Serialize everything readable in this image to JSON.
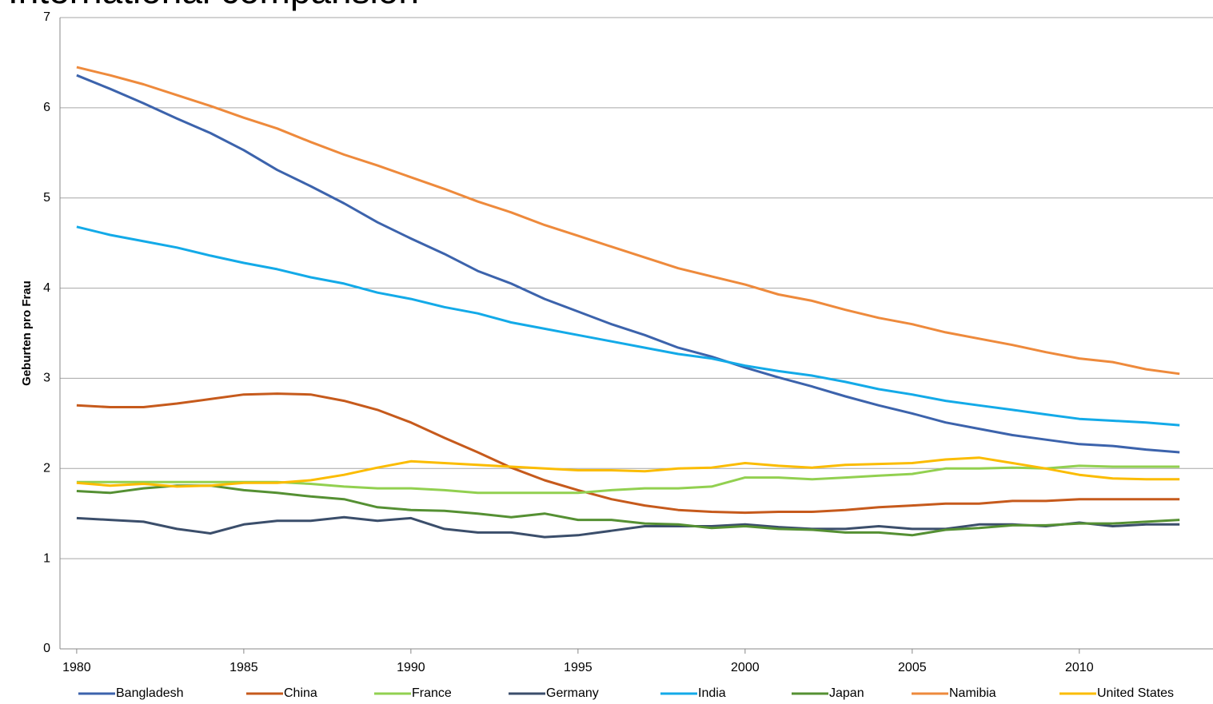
{
  "chart_data": {
    "type": "line",
    "title": "International comparision",
    "y_label": "Geburten pro Frau",
    "x": [
      1980,
      1981,
      1982,
      1983,
      1984,
      1985,
      1986,
      1987,
      1988,
      1989,
      1990,
      1991,
      1992,
      1993,
      1994,
      1995,
      1996,
      1997,
      1998,
      1999,
      2000,
      2001,
      2002,
      2003,
      2004,
      2005,
      2006,
      2007,
      2008,
      2009,
      2010,
      2011,
      2012,
      2013
    ],
    "xlim": [
      1979.5,
      2014
    ],
    "xticks": [
      1980,
      1985,
      1990,
      1995,
      2000,
      2005,
      2010
    ],
    "ylim": [
      0,
      7
    ],
    "yticks": [
      0,
      1,
      2,
      3,
      4,
      5,
      6,
      7
    ],
    "grid": true,
    "legend": "bottom",
    "series": [
      {
        "name": "Bangladesh",
        "color": "#3c63ac",
        "values": [
          6.36,
          6.21,
          6.05,
          5.88,
          5.72,
          5.53,
          5.31,
          5.13,
          4.94,
          4.73,
          4.55,
          4.38,
          4.19,
          4.05,
          3.88,
          3.74,
          3.6,
          3.48,
          3.34,
          3.24,
          3.12,
          3.01,
          2.91,
          2.8,
          2.7,
          2.61,
          2.51,
          2.44,
          2.37,
          2.32,
          2.27,
          2.25,
          2.21,
          2.18
        ]
      },
      {
        "name": "China",
        "color": "#c65a1c",
        "values": [
          2.7,
          2.68,
          2.68,
          2.72,
          2.77,
          2.82,
          2.83,
          2.82,
          2.75,
          2.65,
          2.51,
          2.34,
          2.18,
          2.01,
          1.87,
          1.76,
          1.66,
          1.59,
          1.54,
          1.52,
          1.51,
          1.52,
          1.52,
          1.54,
          1.57,
          1.59,
          1.61,
          1.61,
          1.64,
          1.64,
          1.66,
          1.66,
          1.66,
          1.66
        ]
      },
      {
        "name": "France",
        "color": "#92d050",
        "values": [
          1.85,
          1.85,
          1.85,
          1.85,
          1.85,
          1.85,
          1.85,
          1.83,
          1.8,
          1.78,
          1.78,
          1.76,
          1.73,
          1.73,
          1.73,
          1.73,
          1.76,
          1.78,
          1.78,
          1.8,
          1.9,
          1.9,
          1.88,
          1.9,
          1.92,
          1.94,
          2.0,
          2.0,
          2.01,
          2.0,
          2.03,
          2.02,
          2.02,
          2.02
        ]
      },
      {
        "name": "Germany",
        "color": "#3b4e6b",
        "values": [
          1.45,
          1.43,
          1.41,
          1.33,
          1.28,
          1.38,
          1.42,
          1.42,
          1.46,
          1.42,
          1.45,
          1.33,
          1.29,
          1.29,
          1.24,
          1.26,
          1.31,
          1.36,
          1.36,
          1.36,
          1.38,
          1.35,
          1.33,
          1.33,
          1.36,
          1.33,
          1.33,
          1.38,
          1.38,
          1.36,
          1.4,
          1.36,
          1.38,
          1.38
        ]
      },
      {
        "name": "India",
        "color": "#13aae8",
        "values": [
          4.68,
          4.59,
          4.52,
          4.45,
          4.36,
          4.28,
          4.21,
          4.12,
          4.05,
          3.95,
          3.88,
          3.79,
          3.72,
          3.62,
          3.55,
          3.48,
          3.41,
          3.34,
          3.27,
          3.22,
          3.14,
          3.08,
          3.03,
          2.96,
          2.88,
          2.82,
          2.75,
          2.7,
          2.65,
          2.6,
          2.55,
          2.53,
          2.51,
          2.48
        ]
      },
      {
        "name": "Japan",
        "color": "#559033",
        "values": [
          1.75,
          1.73,
          1.78,
          1.81,
          1.81,
          1.76,
          1.73,
          1.69,
          1.66,
          1.57,
          1.54,
          1.53,
          1.5,
          1.46,
          1.5,
          1.43,
          1.43,
          1.39,
          1.38,
          1.34,
          1.36,
          1.33,
          1.32,
          1.29,
          1.29,
          1.26,
          1.32,
          1.34,
          1.37,
          1.37,
          1.39,
          1.39,
          1.41,
          1.43
        ]
      },
      {
        "name": "Namibia",
        "color": "#ee8a3c",
        "values": [
          6.45,
          6.36,
          6.26,
          6.14,
          6.02,
          5.89,
          5.77,
          5.62,
          5.48,
          5.36,
          5.23,
          5.1,
          4.96,
          4.84,
          4.7,
          4.58,
          4.46,
          4.34,
          4.22,
          4.13,
          4.04,
          3.93,
          3.86,
          3.76,
          3.67,
          3.6,
          3.51,
          3.44,
          3.37,
          3.29,
          3.22,
          3.18,
          3.1,
          3.05
        ]
      },
      {
        "name": "United States",
        "color": "#fbbc00",
        "values": [
          1.84,
          1.81,
          1.83,
          1.8,
          1.81,
          1.84,
          1.84,
          1.87,
          1.93,
          2.01,
          2.08,
          2.06,
          2.04,
          2.02,
          2.0,
          1.98,
          1.98,
          1.97,
          2.0,
          2.01,
          2.06,
          2.03,
          2.01,
          2.04,
          2.05,
          2.06,
          2.1,
          2.12,
          2.06,
          2.0,
          1.93,
          1.89,
          1.88,
          1.88
        ]
      }
    ]
  }
}
